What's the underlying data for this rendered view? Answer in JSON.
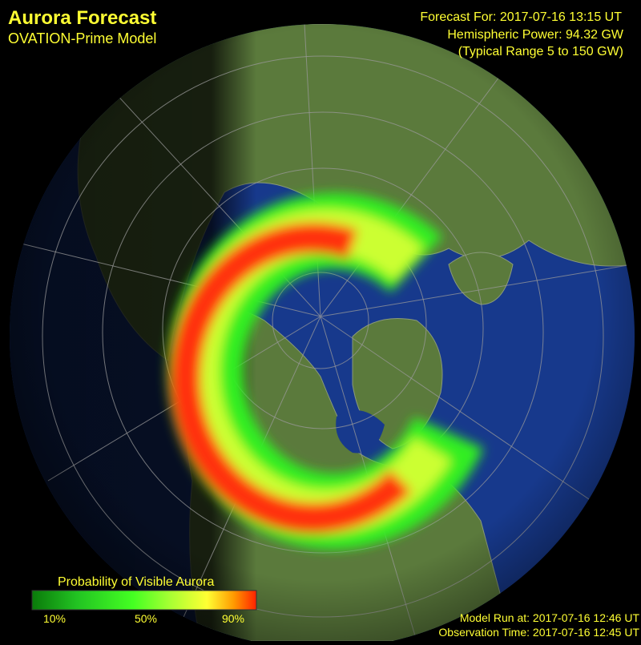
{
  "header": {
    "title": "Aurora Forecast",
    "subtitle": "OVATION-Prime Model"
  },
  "forecast": {
    "time": "Forecast For: 2017-07-16 13:15 UT",
    "power": "Hemispheric Power: 94.32 GW",
    "range": "(Typical Range 5 to 150 GW)"
  },
  "legend": {
    "title": "Probability of Visible Aurora",
    "labels": [
      "10%",
      "50%",
      "90%"
    ]
  },
  "footer": {
    "model_run": "Model Run at: 2017-07-16 12:46 UT",
    "observation": "Observation Time: 2017-07-16 12:45 UT"
  }
}
